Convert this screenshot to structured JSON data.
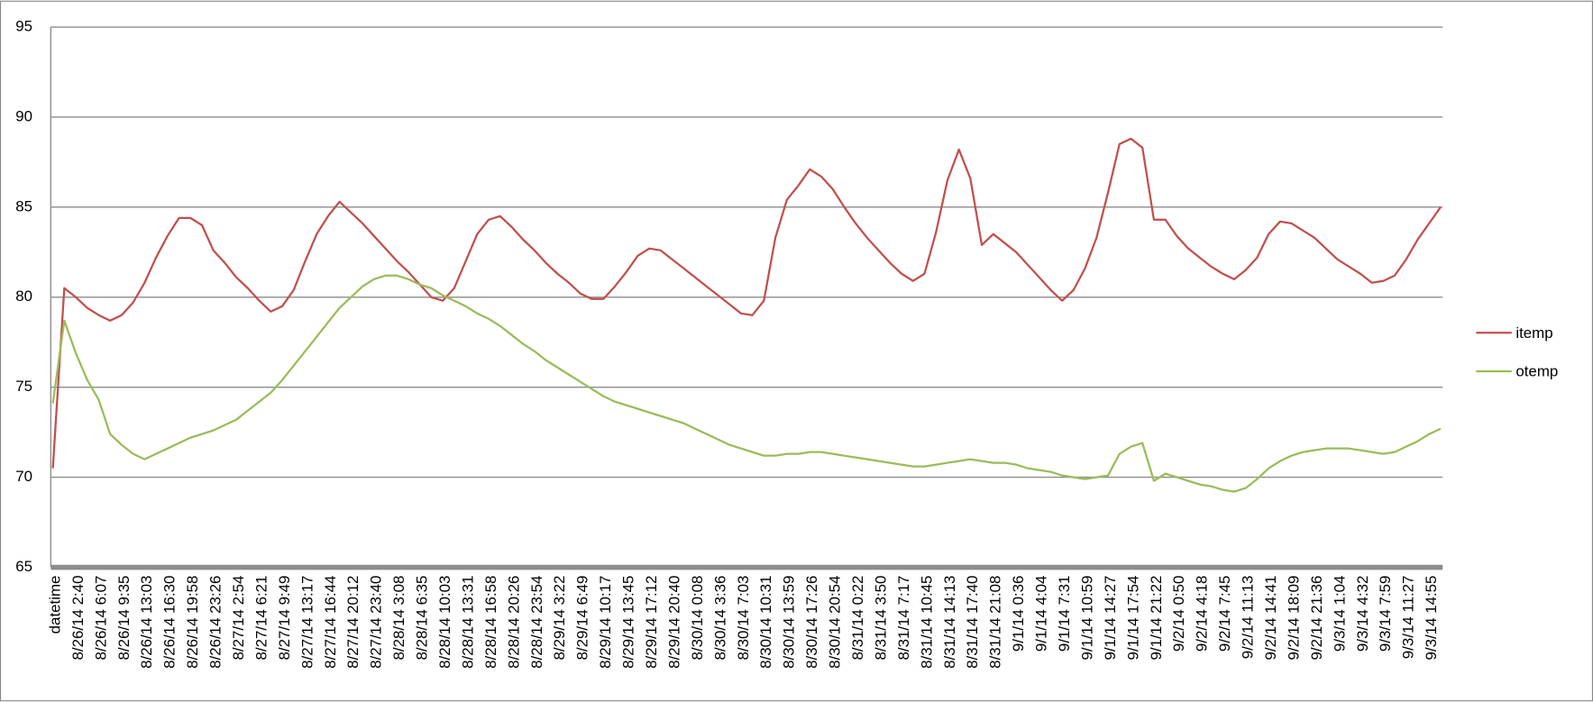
{
  "chart_data": {
    "type": "line",
    "categories": [
      "datetime",
      null,
      "8/26/14 2:40",
      null,
      "8/26/14 6:07",
      null,
      "8/26/14 9:35",
      null,
      "8/26/14 13:03",
      null,
      "8/26/14 16:30",
      null,
      "8/26/14 19:58",
      null,
      "8/26/14 23:26",
      null,
      "8/27/14 2:54",
      null,
      "8/27/14 6:21",
      null,
      "8/27/14 9:49",
      null,
      "8/27/14 13:17",
      null,
      "8/27/14 16:44",
      null,
      "8/27/14 20:12",
      null,
      "8/27/14 23:40",
      null,
      "8/28/14 3:08",
      null,
      "8/28/14 6:35",
      null,
      "8/28/14 10:03",
      null,
      "8/28/14 13:31",
      null,
      "8/28/14 16:58",
      null,
      "8/28/14 20:26",
      null,
      "8/28/14 23:54",
      null,
      "8/29/14 3:22",
      null,
      "8/29/14 6:49",
      null,
      "8/29/14 10:17",
      null,
      "8/29/14 13:45",
      null,
      "8/29/14 17:12",
      null,
      "8/29/14 20:40",
      null,
      "8/30/14 0:08",
      null,
      "8/30/14 3:36",
      null,
      "8/30/14 7:03",
      null,
      "8/30/14 10:31",
      null,
      "8/30/14 13:59",
      null,
      "8/30/14 17:26",
      null,
      "8/30/14 20:54",
      null,
      "8/31/14 0:22",
      null,
      "8/31/14 3:50",
      null,
      "8/31/14 7:17",
      null,
      "8/31/14 10:45",
      null,
      "8/31/14 14:13",
      null,
      "8/31/14 17:40",
      null,
      "8/31/14 21:08",
      null,
      "9/1/14 0:36",
      null,
      "9/1/14 4:04",
      null,
      "9/1/14 7:31",
      null,
      "9/1/14 10:59",
      null,
      "9/1/14 14:27",
      null,
      "9/1/14 17:54",
      null,
      "9/1/14 21:22",
      null,
      "9/2/14 0:50",
      null,
      "9/2/14 4:18",
      null,
      "9/2/14 7:45",
      null,
      "9/2/14 11:13",
      null,
      "9/2/14 14:41",
      null,
      "9/2/14 18:09",
      null,
      "9/2/14 21:36",
      null,
      "9/3/14 1:04",
      null,
      "9/3/14 4:32",
      null,
      "9/3/14 7:59",
      null,
      "9/3/14 11:27",
      null,
      "9/3/14 14:55",
      null
    ],
    "series": [
      {
        "name": "itemp",
        "color": "#c0504d",
        "values": [
          70.5,
          80.5,
          80.0,
          79.4,
          79.0,
          78.7,
          79.0,
          79.7,
          80.8,
          82.2,
          83.4,
          84.4,
          84.4,
          84.0,
          82.6,
          81.9,
          81.1,
          80.5,
          79.8,
          79.2,
          79.5,
          80.4,
          82.0,
          83.5,
          84.5,
          85.3,
          84.7,
          84.1,
          83.4,
          82.7,
          82.0,
          81.4,
          80.7,
          80.0,
          79.8,
          80.5,
          82.0,
          83.5,
          84.3,
          84.5,
          83.9,
          83.2,
          82.6,
          81.9,
          81.3,
          80.8,
          80.2,
          79.9,
          79.9,
          80.6,
          81.4,
          82.3,
          82.7,
          82.6,
          82.1,
          81.6,
          81.1,
          80.6,
          80.1,
          79.6,
          79.1,
          79.0,
          79.8,
          83.3,
          85.4,
          86.2,
          87.1,
          86.7,
          86.0,
          85.0,
          84.1,
          83.3,
          82.6,
          81.9,
          81.3,
          80.9,
          81.3,
          83.6,
          86.5,
          88.2,
          86.6,
          82.9,
          83.5,
          83.0,
          82.5,
          81.8,
          81.1,
          80.4,
          79.8,
          80.4,
          81.6,
          83.3,
          85.8,
          88.5,
          88.8,
          88.3,
          84.3,
          84.3,
          83.4,
          82.7,
          82.2,
          81.7,
          81.3,
          81.0,
          81.5,
          82.2,
          83.5,
          84.2,
          84.1,
          83.7,
          83.3,
          82.7,
          82.1,
          81.7,
          81.3,
          80.8,
          80.9,
          81.2,
          82.1,
          83.2,
          84.1,
          85.0
        ]
      },
      {
        "name": "otemp",
        "color": "#9bbb59",
        "values": [
          74.1,
          78.7,
          76.9,
          75.4,
          74.3,
          72.4,
          71.8,
          71.3,
          71.0,
          71.3,
          71.6,
          71.9,
          72.2,
          72.4,
          72.6,
          72.9,
          73.2,
          73.7,
          74.2,
          74.7,
          75.4,
          76.2,
          77.0,
          77.8,
          78.6,
          79.4,
          80.0,
          80.6,
          81.0,
          81.2,
          81.2,
          81.0,
          80.7,
          80.5,
          80.1,
          79.8,
          79.5,
          79.1,
          78.8,
          78.4,
          77.9,
          77.4,
          77.0,
          76.5,
          76.1,
          75.7,
          75.3,
          74.9,
          74.5,
          74.2,
          74.0,
          73.8,
          73.6,
          73.4,
          73.2,
          73.0,
          72.7,
          72.4,
          72.1,
          71.8,
          71.6,
          71.4,
          71.2,
          71.2,
          71.3,
          71.3,
          71.4,
          71.4,
          71.3,
          71.2,
          71.1,
          71.0,
          70.9,
          70.8,
          70.7,
          70.6,
          70.6,
          70.7,
          70.8,
          70.9,
          71.0,
          70.9,
          70.8,
          70.8,
          70.7,
          70.5,
          70.4,
          70.3,
          70.1,
          70.0,
          69.9,
          70.0,
          70.1,
          71.3,
          71.7,
          71.9,
          69.8,
          70.2,
          70.0,
          69.8,
          69.6,
          69.5,
          69.3,
          69.2,
          69.4,
          69.9,
          70.5,
          70.9,
          71.2,
          71.4,
          71.5,
          71.6,
          71.6,
          71.6,
          71.5,
          71.4,
          71.3,
          71.4,
          71.7,
          72.0,
          72.4,
          72.7
        ]
      }
    ],
    "ylim": [
      65,
      95
    ],
    "yticks": [
      65,
      70,
      75,
      80,
      85,
      90,
      95
    ],
    "grid": true,
    "legend": "right"
  }
}
